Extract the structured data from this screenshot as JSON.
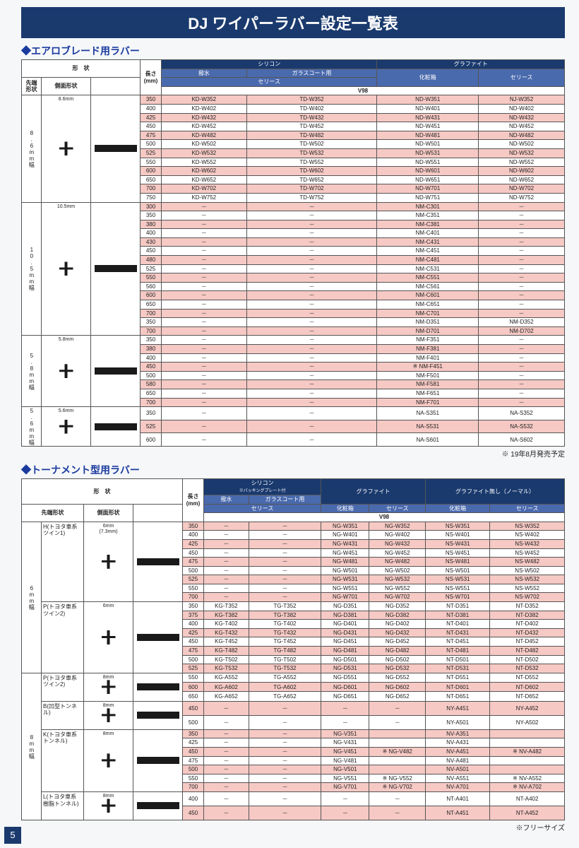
{
  "title": "DJ ワイパーラバー設定一覧表",
  "section1": {
    "heading": "エアロブレード用ラバー",
    "shape_header": "形　状",
    "tip_header": "先端形状",
    "side_header": "側面形状",
    "len_header": "長さ(mm)",
    "group1_label": "シリコン",
    "group2_label": "グラファイト",
    "sub1": "撥水",
    "sub2": "ガラスコート用",
    "sub3": "化粧箱",
    "series": "セリース",
    "v98": "V98",
    "shapes": [
      {
        "label": "8.6\nmm\n幅",
        "dim": "8.6mm"
      },
      {
        "label": "10.5\nmm\n幅",
        "dim": "10.5mm"
      },
      {
        "label": "5.8\nmm\n幅",
        "dim": "5.8mm"
      },
      {
        "label": "5.6\nmm\n幅",
        "dim": "5.6mm"
      }
    ],
    "rows": [
      {
        "sh": 0,
        "len": "350",
        "c": [
          "KD-W352",
          "TD-W352",
          "ND-W351",
          "NJ-W352"
        ],
        "p": 1
      },
      {
        "sh": 0,
        "len": "400",
        "c": [
          "KD-W402",
          "TD-W402",
          "ND-W401",
          "ND-W402"
        ],
        "p": 0
      },
      {
        "sh": 0,
        "len": "425",
        "c": [
          "KD-W432",
          "TD-W432",
          "ND-W431",
          "ND-W432"
        ],
        "p": 1
      },
      {
        "sh": 0,
        "len": "450",
        "c": [
          "KD-W452",
          "TD-W452",
          "ND-W451",
          "ND-W452"
        ],
        "p": 0
      },
      {
        "sh": 0,
        "len": "475",
        "c": [
          "KD-W482",
          "TD-W482",
          "ND-W481",
          "ND-W482"
        ],
        "p": 1
      },
      {
        "sh": 0,
        "len": "500",
        "c": [
          "KD-W502",
          "TD-W502",
          "ND-W501",
          "ND-W502"
        ],
        "p": 0
      },
      {
        "sh": 0,
        "len": "525",
        "c": [
          "KD-W532",
          "TD-W532",
          "ND-W531",
          "ND-W532"
        ],
        "p": 1
      },
      {
        "sh": 0,
        "len": "550",
        "c": [
          "KD-W552",
          "TD-W552",
          "ND-W551",
          "ND-W552"
        ],
        "p": 0
      },
      {
        "sh": 0,
        "len": "600",
        "c": [
          "KD-W602",
          "TD-W602",
          "ND-W601",
          "ND-W602"
        ],
        "p": 1
      },
      {
        "sh": 0,
        "len": "650",
        "c": [
          "KD-W652",
          "TD-W652",
          "ND-W651",
          "ND-W652"
        ],
        "p": 0
      },
      {
        "sh": 0,
        "len": "700",
        "c": [
          "KD-W702",
          "TD-W702",
          "ND-W701",
          "ND-W702"
        ],
        "p": 1
      },
      {
        "sh": 0,
        "len": "750",
        "c": [
          "KD-W752",
          "TD-W752",
          "ND-W751",
          "ND-W752"
        ],
        "p": 0
      },
      {
        "sh": 1,
        "len": "300",
        "c": [
          "－",
          "－",
          "NM-C301",
          "－"
        ],
        "p": 1
      },
      {
        "sh": 1,
        "len": "350",
        "c": [
          "－",
          "－",
          "NM-C351",
          "－"
        ],
        "p": 0
      },
      {
        "sh": 1,
        "len": "380",
        "c": [
          "－",
          "－",
          "NM-C381",
          "－"
        ],
        "p": 1
      },
      {
        "sh": 1,
        "len": "400",
        "c": [
          "－",
          "－",
          "NM-C401",
          "－"
        ],
        "p": 0
      },
      {
        "sh": 1,
        "len": "430",
        "c": [
          "－",
          "－",
          "NM-C431",
          "－"
        ],
        "p": 1
      },
      {
        "sh": 1,
        "len": "450",
        "c": [
          "－",
          "－",
          "NM-C451",
          "－"
        ],
        "p": 0
      },
      {
        "sh": 1,
        "len": "480",
        "c": [
          "－",
          "－",
          "NM-C481",
          "－"
        ],
        "p": 1
      },
      {
        "sh": 1,
        "len": "525",
        "c": [
          "－",
          "－",
          "NM-C531",
          "－"
        ],
        "p": 0
      },
      {
        "sh": 1,
        "len": "550",
        "c": [
          "－",
          "－",
          "NM-C551",
          "－"
        ],
        "p": 1
      },
      {
        "sh": 1,
        "len": "560",
        "c": [
          "－",
          "－",
          "NM-C561",
          "－"
        ],
        "p": 0
      },
      {
        "sh": 1,
        "len": "600",
        "c": [
          "－",
          "－",
          "NM-C601",
          "－"
        ],
        "p": 1
      },
      {
        "sh": 1,
        "len": "650",
        "c": [
          "－",
          "－",
          "NM-C651",
          "－"
        ],
        "p": 0
      },
      {
        "sh": 1,
        "len": "700",
        "c": [
          "－",
          "－",
          "NM-C701",
          "－"
        ],
        "p": 1
      },
      {
        "sh": 1,
        "len": "350",
        "c": [
          "－",
          "－",
          "NM-D351",
          "NM-D352"
        ],
        "p": 0
      },
      {
        "sh": 1,
        "len": "700",
        "c": [
          "－",
          "－",
          "NM-D701",
          "NM-D702"
        ],
        "p": 1
      },
      {
        "sh": 2,
        "len": "350",
        "c": [
          "－",
          "－",
          "NM-F351",
          "－"
        ],
        "p": 0
      },
      {
        "sh": 2,
        "len": "380",
        "c": [
          "－",
          "－",
          "NM-F381",
          "－"
        ],
        "p": 1
      },
      {
        "sh": 2,
        "len": "400",
        "c": [
          "－",
          "－",
          "NM-F401",
          "－"
        ],
        "p": 0
      },
      {
        "sh": 2,
        "len": "450",
        "c": [
          "－",
          "－",
          "※ NM-F451",
          "－"
        ],
        "p": 1
      },
      {
        "sh": 2,
        "len": "500",
        "c": [
          "－",
          "－",
          "NM-F501",
          "－"
        ],
        "p": 0
      },
      {
        "sh": 2,
        "len": "580",
        "c": [
          "－",
          "－",
          "NM-F581",
          "－"
        ],
        "p": 1
      },
      {
        "sh": 2,
        "len": "650",
        "c": [
          "－",
          "－",
          "NM-F651",
          "－"
        ],
        "p": 0
      },
      {
        "sh": 2,
        "len": "700",
        "c": [
          "－",
          "－",
          "NM-F701",
          "－"
        ],
        "p": 1
      },
      {
        "sh": 3,
        "len": "350",
        "c": [
          "－",
          "－",
          "NA-S351",
          "NA-S352"
        ],
        "p": 0
      },
      {
        "sh": 3,
        "len": "525",
        "c": [
          "－",
          "－",
          "NA-S531",
          "NA-S532"
        ],
        "p": 1
      },
      {
        "sh": 3,
        "len": "600",
        "c": [
          "－",
          "－",
          "NA-S601",
          "NA-S602"
        ],
        "p": 0
      }
    ],
    "footnote": "※ 19年8月発売予定"
  },
  "section2": {
    "heading": "トーナメント型用ラバー",
    "shape_header": "形　状",
    "tip_header": "先端形状",
    "side_header": "側面形状",
    "len_header": "長さ(mm)",
    "g1": "シリコン",
    "g1sub": "※バッキングプレート付",
    "g2": "グラファイト",
    "g3": "グラファイト無し（ノーマル）",
    "sub1": "撥水",
    "sub2": "ガラスコート用",
    "series": "セリース",
    "keshou": "化粧箱",
    "v98": "V98",
    "widths": [
      {
        "label": "6\nmm\n幅"
      },
      {
        "label": "8\nmm\n幅"
      }
    ],
    "types": [
      {
        "w": 0,
        "label": "H(トヨタ車系\nツイン1)",
        "dim": "6mm\n(7.3mm)"
      },
      {
        "w": 0,
        "label": "P(トヨタ車系\nツイン2)",
        "dim": "6mm"
      },
      {
        "w": 1,
        "label": "P(トヨタ車系\nツイン2)",
        "dim": "8mm"
      },
      {
        "w": 1,
        "label": "B(凹型トンネル)",
        "dim": "8mm"
      },
      {
        "w": 1,
        "label": "K(トヨタ車系\nトンネル)",
        "dim": "8mm"
      },
      {
        "w": 1,
        "label": "L(トヨタ車系\n樹脂トンネル)",
        "dim": "8mm"
      }
    ],
    "rows": [
      {
        "t": 0,
        "len": "350",
        "c": [
          "－",
          "－",
          "NG-W351",
          "NG-W352",
          "NS-W351",
          "NS-W352"
        ],
        "p": 1
      },
      {
        "t": 0,
        "len": "400",
        "c": [
          "－",
          "－",
          "NG-W401",
          "NG-W402",
          "NS-W401",
          "NS-W402"
        ],
        "p": 0
      },
      {
        "t": 0,
        "len": "425",
        "c": [
          "－",
          "－",
          "NG-W431",
          "NG-W432",
          "NS-W431",
          "NS-W432"
        ],
        "p": 1
      },
      {
        "t": 0,
        "len": "450",
        "c": [
          "－",
          "－",
          "NG-W451",
          "NG-W452",
          "NS-W451",
          "NS-W452"
        ],
        "p": 0
      },
      {
        "t": 0,
        "len": "475",
        "c": [
          "－",
          "－",
          "NG-W481",
          "NG-W482",
          "NS-W481",
          "NS-W482"
        ],
        "p": 1
      },
      {
        "t": 0,
        "len": "500",
        "c": [
          "－",
          "－",
          "NG-W501",
          "NG-W502",
          "NS-W501",
          "NS-W502"
        ],
        "p": 0
      },
      {
        "t": 0,
        "len": "525",
        "c": [
          "－",
          "－",
          "NG-W531",
          "NG-W532",
          "NS-W531",
          "NS-W532"
        ],
        "p": 1
      },
      {
        "t": 0,
        "len": "550",
        "c": [
          "－",
          "－",
          "NG-W551",
          "NG-W552",
          "NS-W551",
          "NS-W552"
        ],
        "p": 0
      },
      {
        "t": 0,
        "len": "700",
        "c": [
          "－",
          "－",
          "NG-W701",
          "NG-W702",
          "NS-W701",
          "NS-W702"
        ],
        "p": 1
      },
      {
        "t": 1,
        "len": "350",
        "c": [
          "KG-T352",
          "TG-T352",
          "NG-D351",
          "NG-D352",
          "NT-D351",
          "NT-D352"
        ],
        "p": 0
      },
      {
        "t": 1,
        "len": "375",
        "c": [
          "KG-T382",
          "TG-T382",
          "NG-D381",
          "NG-D382",
          "NT-D381",
          "NT-D382"
        ],
        "p": 1
      },
      {
        "t": 1,
        "len": "400",
        "c": [
          "KG-T402",
          "TG-T402",
          "NG-D401",
          "NG-D402",
          "NT-D401",
          "NT-D402"
        ],
        "p": 0
      },
      {
        "t": 1,
        "len": "425",
        "c": [
          "KG-T432",
          "TG-T432",
          "NG-D431",
          "NG-D432",
          "NT-D431",
          "NT-D432"
        ],
        "p": 1
      },
      {
        "t": 1,
        "len": "450",
        "c": [
          "KG-T452",
          "TG-T452",
          "NG-D451",
          "NG-D452",
          "NT-D451",
          "NT-D452"
        ],
        "p": 0
      },
      {
        "t": 1,
        "len": "475",
        "c": [
          "KG-T482",
          "TG-T482",
          "NG-D481",
          "NG-D482",
          "NT-D481",
          "NT-D482"
        ],
        "p": 1
      },
      {
        "t": 1,
        "len": "500",
        "c": [
          "KG-T502",
          "TG-T502",
          "NG-D501",
          "NG-D502",
          "NT-D501",
          "NT-D502"
        ],
        "p": 0
      },
      {
        "t": 1,
        "len": "525",
        "c": [
          "KG-T532",
          "TG-T532",
          "NG-D531",
          "NG-D532",
          "NT-D531",
          "NT-D532"
        ],
        "p": 1
      },
      {
        "t": 2,
        "len": "550",
        "c": [
          "KG-A552",
          "TG-A552",
          "NG-D551",
          "NG-D552",
          "NT-D551",
          "NT-D552"
        ],
        "p": 0
      },
      {
        "t": 2,
        "len": "600",
        "c": [
          "KG-A602",
          "TG-A602",
          "NG-D601",
          "NG-D602",
          "NT-D601",
          "NT-D602"
        ],
        "p": 1
      },
      {
        "t": 2,
        "len": "650",
        "c": [
          "KG-A652",
          "TG-A652",
          "NG-D651",
          "NG-D652",
          "NT-D651",
          "NT-D652"
        ],
        "p": 0
      },
      {
        "t": 3,
        "len": "450",
        "c": [
          "－",
          "－",
          "－",
          "－",
          "NY-A451",
          "NY-A452"
        ],
        "p": 1
      },
      {
        "t": 3,
        "len": "500",
        "c": [
          "－",
          "－",
          "－",
          "－",
          "NY-A501",
          "NY-A502"
        ],
        "p": 0
      },
      {
        "t": 4,
        "len": "350",
        "c": [
          "－",
          "－",
          "NG-V351",
          "",
          "NV-A351",
          ""
        ],
        "p": 1
      },
      {
        "t": 4,
        "len": "425",
        "c": [
          "－",
          "－",
          "NG-V431",
          "",
          "NV-A431",
          ""
        ],
        "p": 0
      },
      {
        "t": 4,
        "len": "450",
        "c": [
          "－",
          "－",
          "NG-V451",
          "※ NG-V482",
          "NV-A451",
          "※ NV-A482"
        ],
        "p": 1
      },
      {
        "t": 4,
        "len": "475",
        "c": [
          "－",
          "－",
          "NG-V481",
          "",
          "NV-A481",
          ""
        ],
        "p": 0
      },
      {
        "t": 4,
        "len": "500",
        "c": [
          "－",
          "－",
          "NG-V501",
          "",
          "NV-A501",
          ""
        ],
        "p": 1
      },
      {
        "t": 4,
        "len": "550",
        "c": [
          "－",
          "－",
          "NG-V551",
          "※ NG-V552",
          "NV-A551",
          "※ NV-A552"
        ],
        "p": 0
      },
      {
        "t": 4,
        "len": "700",
        "c": [
          "－",
          "－",
          "NG-V701",
          "※ NG-V702",
          "NV-A701",
          "※ NV-A702"
        ],
        "p": 1
      },
      {
        "t": 5,
        "len": "400",
        "c": [
          "－",
          "－",
          "－",
          "－",
          "NT-A401",
          "NT-A402"
        ],
        "p": 0
      },
      {
        "t": 5,
        "len": "450",
        "c": [
          "－",
          "－",
          "－",
          "－",
          "NT-A451",
          "NT-A452"
        ],
        "p": 1
      }
    ],
    "footnote": "※フリーサイズ"
  },
  "pagenum": "5"
}
